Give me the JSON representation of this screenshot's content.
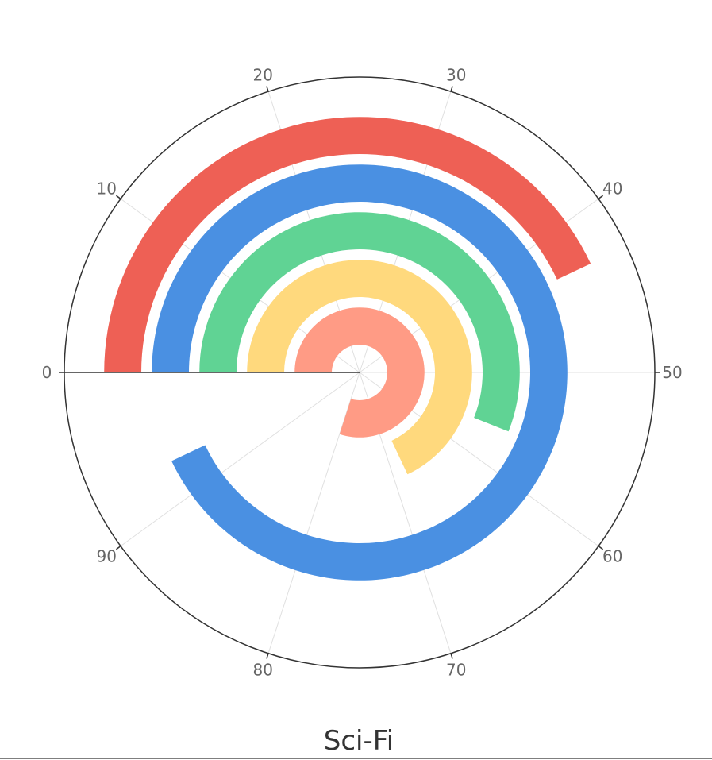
{
  "chart_data": {
    "type": "polar-bar",
    "title": "Sci-Fi",
    "angle_axis": {
      "min": 0,
      "max": 100,
      "ticks": [
        "0",
        "10",
        "20",
        "30",
        "40",
        "50",
        "60",
        "70",
        "80",
        "90"
      ],
      "start": "left",
      "direction": "clockwise",
      "grid": true
    },
    "series": [
      {
        "color": "#EE6055",
        "value": 43
      },
      {
        "color": "#4A90E2",
        "value": 93
      },
      {
        "color": "#60D394",
        "value": 56
      },
      {
        "color": "#FFD97D",
        "value": 68
      },
      {
        "color": "#FF9B85",
        "value": 80
      }
    ]
  }
}
